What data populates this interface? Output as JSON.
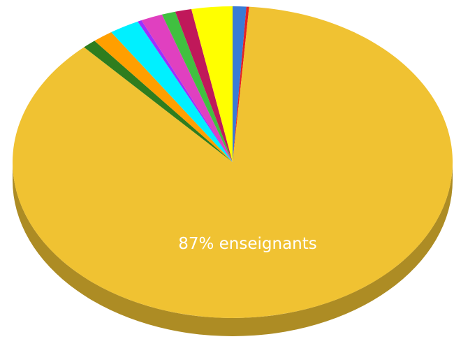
{
  "chart_data": {
    "type": "pie3d",
    "categories": [
      null,
      null,
      null,
      null,
      null,
      null,
      null,
      null,
      null,
      null,
      null
    ],
    "values": [
      1,
      0.2,
      87,
      1,
      1.5,
      2.2,
      0.3,
      1.6,
      1,
      1.2,
      3
    ],
    "value_labels": [
      null,
      null,
      "87% enseignants",
      null,
      null,
      null,
      null,
      null,
      null,
      null,
      null
    ],
    "colors": [
      "#3a7bd5",
      "#e82020",
      "#f0c232",
      "#2e7d1e",
      "#ff9f00",
      "#00f0ff",
      "#9b30ff",
      "#e040c0",
      "#40c040",
      "#c0185a",
      "#ffff00"
    ]
  }
}
